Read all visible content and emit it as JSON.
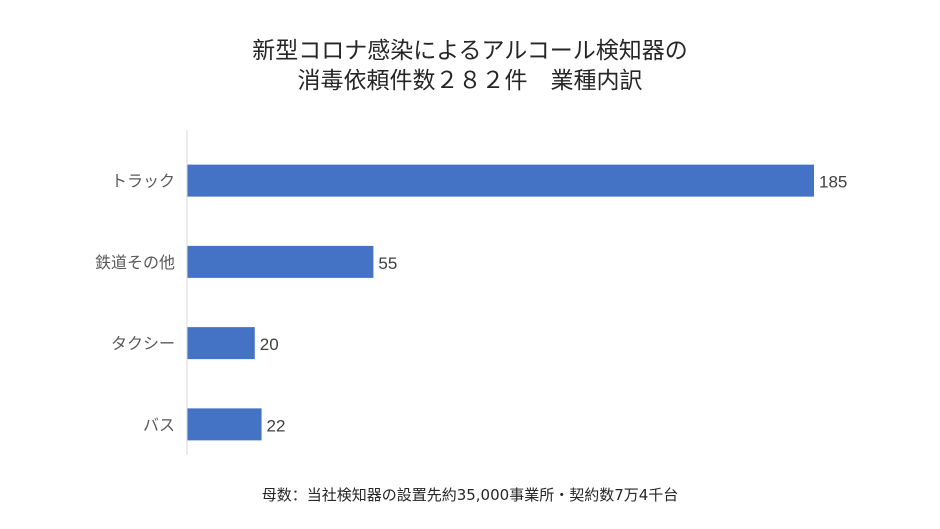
{
  "chart_data": {
    "type": "bar",
    "orientation": "horizontal",
    "title_lines": [
      "新型コロナ感染によるアルコール検知器の",
      "消毒依頼件数２８２件　業種内訳"
    ],
    "categories": [
      "トラック",
      "鉄道その他",
      "タクシー",
      "バス"
    ],
    "values": [
      185,
      55,
      20,
      22
    ],
    "xlabel": "",
    "ylabel": "",
    "xlim": [
      0,
      185
    ],
    "grid": false,
    "data_labels": true,
    "bar_color": "#4472C4"
  },
  "footnote": "母数：当社検知器の設置先約35,000事業所・契約数7万4千台"
}
